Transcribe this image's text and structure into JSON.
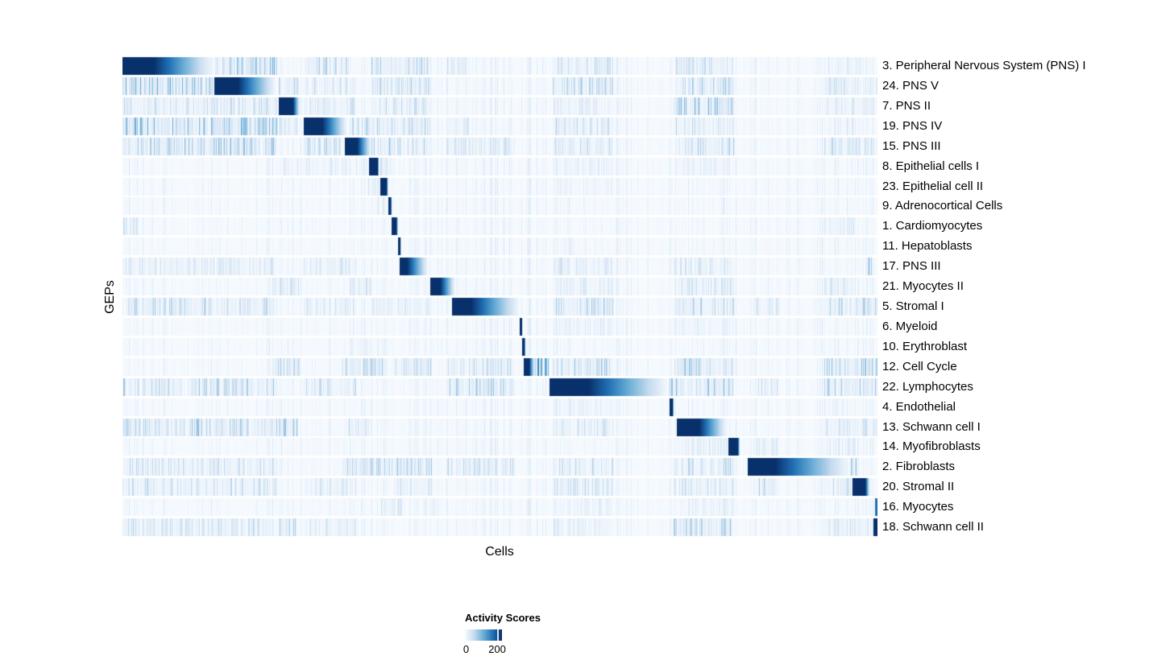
{
  "colors": {
    "background": "#FFFFFF",
    "colormap": [
      "#F7FBFF",
      "#C6DBEF",
      "#6BAED6",
      "#2171B5",
      "#08306B"
    ],
    "row_gap_color": "#FFFFFF"
  },
  "chart_data": {
    "type": "heatmap",
    "title": "",
    "xlabel": "Cells",
    "ylabel": "GEPs",
    "legend_title": "Activity Scores",
    "legend_min": "0",
    "legend_max": "200",
    "legend_ticks": [
      0,
      200
    ],
    "value_range": [
      0,
      230
    ],
    "legend_tick_fraction": 0.87,
    "grid": false,
    "x_ticks": "none (individual cells, unlabeled)",
    "rows": [
      {
        "label": "3. Peripheral Nervous System (PNS) I",
        "block": [
          0.0,
          0.042,
          0.121
        ],
        "noise": [
          [
            0.123,
            0.205,
            0.55
          ],
          [
            0.24,
            0.3,
            0.35
          ],
          [
            0.33,
            0.41,
            0.4
          ],
          [
            0.43,
            0.46,
            0.25
          ],
          [
            0.57,
            0.65,
            0.3
          ],
          [
            0.73,
            0.81,
            0.3
          ],
          [
            0.93,
            0.98,
            0.2
          ]
        ]
      },
      {
        "label": "24. PNS V",
        "block": [
          0.122,
          0.153,
          0.204
        ],
        "noise": [
          [
            0.0,
            0.12,
            0.55
          ],
          [
            0.207,
            0.233,
            0.35
          ],
          [
            0.24,
            0.31,
            0.3
          ],
          [
            0.33,
            0.41,
            0.35
          ],
          [
            0.57,
            0.65,
            0.35
          ],
          [
            0.73,
            0.81,
            0.4
          ],
          [
            0.93,
            1.0,
            0.25
          ]
        ]
      },
      {
        "label": "7. PNS II",
        "block": [
          0.207,
          0.226,
          0.235
        ],
        "noise": [
          [
            0.0,
            0.205,
            0.3
          ],
          [
            0.24,
            0.31,
            0.25
          ],
          [
            0.33,
            0.41,
            0.3
          ],
          [
            0.57,
            0.65,
            0.25
          ],
          [
            0.73,
            0.81,
            0.5
          ],
          [
            0.93,
            1.0,
            0.2
          ]
        ]
      },
      {
        "label": "19. PNS IV",
        "block": [
          0.24,
          0.265,
          0.298
        ],
        "noise": [
          [
            0.0,
            0.205,
            0.55
          ],
          [
            0.207,
            0.233,
            0.3
          ],
          [
            0.3,
            0.41,
            0.35
          ],
          [
            0.43,
            0.46,
            0.2
          ],
          [
            0.57,
            0.65,
            0.3
          ],
          [
            0.73,
            0.81,
            0.3
          ],
          [
            0.93,
            0.98,
            0.2
          ]
        ]
      },
      {
        "label": "15. PNS III",
        "block": [
          0.295,
          0.311,
          0.33
        ],
        "noise": [
          [
            0.0,
            0.205,
            0.45
          ],
          [
            0.24,
            0.29,
            0.35
          ],
          [
            0.33,
            0.41,
            0.4
          ],
          [
            0.43,
            0.52,
            0.25
          ],
          [
            0.57,
            0.65,
            0.35
          ],
          [
            0.73,
            0.81,
            0.4
          ],
          [
            0.93,
            1.0,
            0.3
          ]
        ]
      },
      {
        "label": "8. Epithelial cells I",
        "block": [
          0.327,
          0.338,
          0.34
        ],
        "noise": [
          [
            0.21,
            0.325,
            0.15
          ],
          [
            0.341,
            0.36,
            0.3
          ],
          [
            0.57,
            0.65,
            0.2
          ],
          [
            0.73,
            0.81,
            0.15
          ]
        ]
      },
      {
        "label": "23. Epithelial cell II",
        "block": [
          0.341,
          0.35,
          0.352
        ],
        "noise": [
          [
            0.325,
            0.34,
            0.3
          ],
          [
            0.57,
            0.65,
            0.12
          ]
        ]
      },
      {
        "label": "9. Adrenocortical Cells",
        "block": [
          0.3525,
          0.3555,
          0.357
        ],
        "noise": [
          [
            0.33,
            0.35,
            0.15
          ]
        ]
      },
      {
        "label": "1. Cardiomyocytes",
        "block": [
          0.356,
          0.363,
          0.365
        ],
        "noise": [
          [
            0.0,
            0.02,
            0.25
          ],
          [
            0.93,
            0.97,
            0.2
          ]
        ]
      },
      {
        "label": "11. Hepatoblasts",
        "block": [
          0.3655,
          0.368,
          0.369
        ],
        "noise": [
          [
            0.57,
            0.6,
            0.1
          ]
        ]
      },
      {
        "label": "17. PNS III",
        "block": [
          0.367,
          0.377,
          0.405
        ],
        "noise": [
          [
            0.0,
            0.015,
            0.6
          ],
          [
            0.02,
            0.205,
            0.25
          ],
          [
            0.24,
            0.31,
            0.25
          ],
          [
            0.57,
            0.65,
            0.25
          ],
          [
            0.73,
            0.81,
            0.25
          ],
          [
            0.985,
            0.993,
            0.55
          ]
        ]
      },
      {
        "label": "21. Myocytes II",
        "block": [
          0.408,
          0.421,
          0.441
        ],
        "noise": [
          [
            0.2,
            0.235,
            0.3
          ],
          [
            0.3,
            0.33,
            0.25
          ],
          [
            0.57,
            0.65,
            0.2
          ],
          [
            0.73,
            0.81,
            0.25
          ],
          [
            0.93,
            0.97,
            0.25
          ]
        ]
      },
      {
        "label": "5. Stromal I",
        "block": [
          0.437,
          0.462,
          0.527
        ],
        "noise": [
          [
            0.0,
            0.205,
            0.35
          ],
          [
            0.24,
            0.31,
            0.25
          ],
          [
            0.33,
            0.41,
            0.25
          ],
          [
            0.57,
            0.65,
            0.4
          ],
          [
            0.73,
            0.81,
            0.35
          ],
          [
            0.84,
            0.87,
            0.25
          ],
          [
            0.93,
            1.0,
            0.35
          ]
        ]
      },
      {
        "label": "6. Myeloid",
        "block": [
          0.526,
          0.529,
          0.53
        ],
        "noise": [
          [
            0.57,
            0.65,
            0.15
          ],
          [
            0.73,
            0.81,
            0.12
          ]
        ]
      },
      {
        "label": "10. Erythroblast",
        "block": [
          0.5295,
          0.5325,
          0.534
        ],
        "noise": [
          [
            0.3,
            0.35,
            0.1
          ]
        ]
      },
      {
        "label": "12. Cell Cycle",
        "block": [
          0.531,
          0.539,
          0.545
        ],
        "noise": [
          [
            0.2,
            0.235,
            0.4
          ],
          [
            0.29,
            0.35,
            0.45
          ],
          [
            0.36,
            0.41,
            0.4
          ],
          [
            0.43,
            0.52,
            0.3
          ],
          [
            0.539,
            0.565,
            0.7
          ],
          [
            0.57,
            0.65,
            0.4
          ],
          [
            0.73,
            0.81,
            0.4
          ],
          [
            0.93,
            1.0,
            0.45
          ]
        ]
      },
      {
        "label": "22. Lymphocytes",
        "block": [
          0.566,
          0.617,
          0.724
        ],
        "noise": [
          [
            0.0,
            0.205,
            0.4
          ],
          [
            0.24,
            0.31,
            0.3
          ],
          [
            0.43,
            0.52,
            0.4
          ],
          [
            0.724,
            0.81,
            0.45
          ],
          [
            0.84,
            0.87,
            0.3
          ],
          [
            0.93,
            1.0,
            0.4
          ]
        ]
      },
      {
        "label": "4. Endothelial",
        "block": [
          0.725,
          0.729,
          0.73
        ],
        "noise": [
          [
            0.57,
            0.65,
            0.15
          ],
          [
            0.93,
            0.96,
            0.15
          ]
        ]
      },
      {
        "label": "13. Schwann cell I",
        "block": [
          0.734,
          0.764,
          0.801
        ],
        "noise": [
          [
            0.0,
            0.205,
            0.4
          ],
          [
            0.207,
            0.233,
            0.45
          ],
          [
            0.295,
            0.33,
            0.3
          ],
          [
            0.57,
            0.65,
            0.25
          ],
          [
            0.93,
            0.99,
            0.3
          ],
          [
            0.995,
            1.0,
            0.6
          ]
        ]
      },
      {
        "label": "14. Myofibroblasts",
        "block": [
          0.803,
          0.815,
          0.818
        ],
        "noise": [
          [
            0.73,
            0.8,
            0.2
          ],
          [
            0.84,
            0.87,
            0.25
          ],
          [
            0.93,
            0.97,
            0.2
          ]
        ]
      },
      {
        "label": "2. Fibroblasts",
        "block": [
          0.828,
          0.864,
          0.964
        ],
        "noise": [
          [
            0.0,
            0.205,
            0.3
          ],
          [
            0.29,
            0.41,
            0.4
          ],
          [
            0.43,
            0.52,
            0.3
          ],
          [
            0.57,
            0.65,
            0.3
          ],
          [
            0.73,
            0.81,
            0.35
          ],
          [
            0.965,
            0.972,
            0.5
          ]
        ]
      },
      {
        "label": "20. Stromal II",
        "block": [
          0.967,
          0.984,
          0.99
        ],
        "noise": [
          [
            0.0,
            0.205,
            0.3
          ],
          [
            0.24,
            0.31,
            0.25
          ],
          [
            0.36,
            0.41,
            0.25
          ],
          [
            0.57,
            0.65,
            0.3
          ],
          [
            0.73,
            0.81,
            0.3
          ],
          [
            0.84,
            0.87,
            0.35
          ],
          [
            0.93,
            0.965,
            0.3
          ]
        ]
      },
      {
        "label": "16. Myocytes",
        "block": [
          0.9965,
          1.0,
          1.0
        ],
        "block_value": 0.75,
        "noise": [
          [
            0.34,
            0.37,
            0.3
          ],
          [
            0.4,
            0.42,
            0.25
          ],
          [
            0.57,
            0.65,
            0.15
          ],
          [
            0.73,
            0.81,
            0.15
          ]
        ]
      },
      {
        "label": "18. Schwann cell II",
        "block": [
          0.995,
          1.0,
          1.0
        ],
        "noise": [
          [
            0.0,
            0.205,
            0.3
          ],
          [
            0.207,
            0.233,
            0.35
          ],
          [
            0.24,
            0.31,
            0.2
          ],
          [
            0.57,
            0.65,
            0.2
          ],
          [
            0.73,
            0.81,
            0.4
          ],
          [
            0.93,
            0.99,
            0.25
          ]
        ]
      }
    ]
  }
}
